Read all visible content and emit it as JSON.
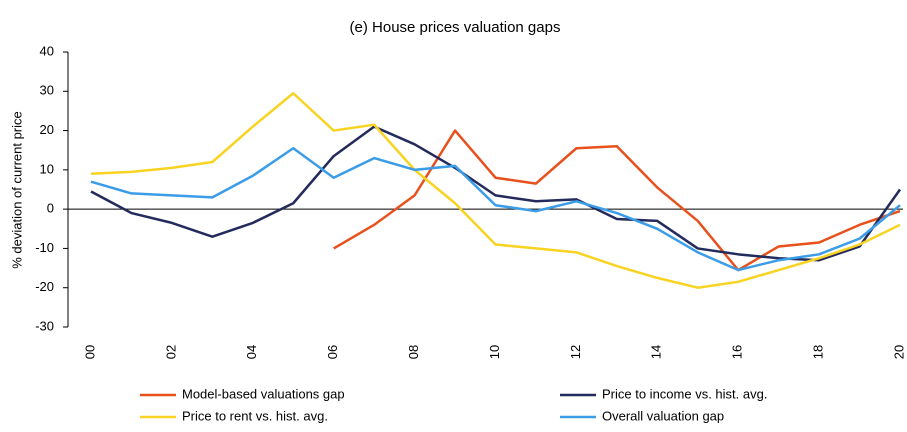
{
  "chart_data": {
    "type": "line",
    "title": "(e) House prices valuation gaps",
    "y_label": "% deviation of current price",
    "categories": [
      "00",
      null,
      "02",
      null,
      "04",
      null,
      "06",
      null,
      "08",
      null,
      "10",
      null,
      "12",
      null,
      "14",
      null,
      "16",
      null,
      "18",
      null,
      "20"
    ],
    "series": [
      {
        "name": "Model-based valuations gap",
        "color": "#e8501c",
        "values": [
          null,
          null,
          null,
          null,
          null,
          null,
          -10,
          -4,
          3.5,
          20,
          8,
          6.5,
          15.5,
          16,
          5.5,
          -3,
          -15.5,
          -9.5,
          -8.5,
          -4,
          -0.5
        ]
      },
      {
        "name": "Price to income vs. hist. avg.",
        "color": "#232a5c",
        "values": [
          4.5,
          -1,
          -3.5,
          -7,
          -3.5,
          1.5,
          13.5,
          21,
          16.5,
          10.5,
          3.5,
          2,
          2.5,
          -2.5,
          -3,
          -10,
          -11.5,
          -12.5,
          -13,
          -9.5,
          5
        ]
      },
      {
        "name": "Price to rent vs. hist. avg.",
        "color": "#f9d322",
        "values": [
          9,
          9.5,
          10.5,
          12,
          21,
          29.5,
          20,
          21.5,
          10,
          1.5,
          -9,
          -10,
          -11,
          -14.5,
          -17.5,
          -20,
          -18.5,
          -15.5,
          -12.5,
          -9,
          -4
        ]
      },
      {
        "name": "Overall valuation gap",
        "color": "#3b9ce8",
        "values": [
          7,
          4,
          3.5,
          3,
          8.5,
          15.5,
          8,
          13,
          10,
          11,
          1,
          -0.5,
          2,
          -1,
          -5,
          -11,
          -15.5,
          -13,
          -11.5,
          -7.5,
          1
        ]
      }
    ],
    "ylim": [
      -30,
      40
    ],
    "yticks": [
      -30,
      -20,
      -10,
      0,
      10,
      20,
      30,
      40
    ]
  }
}
